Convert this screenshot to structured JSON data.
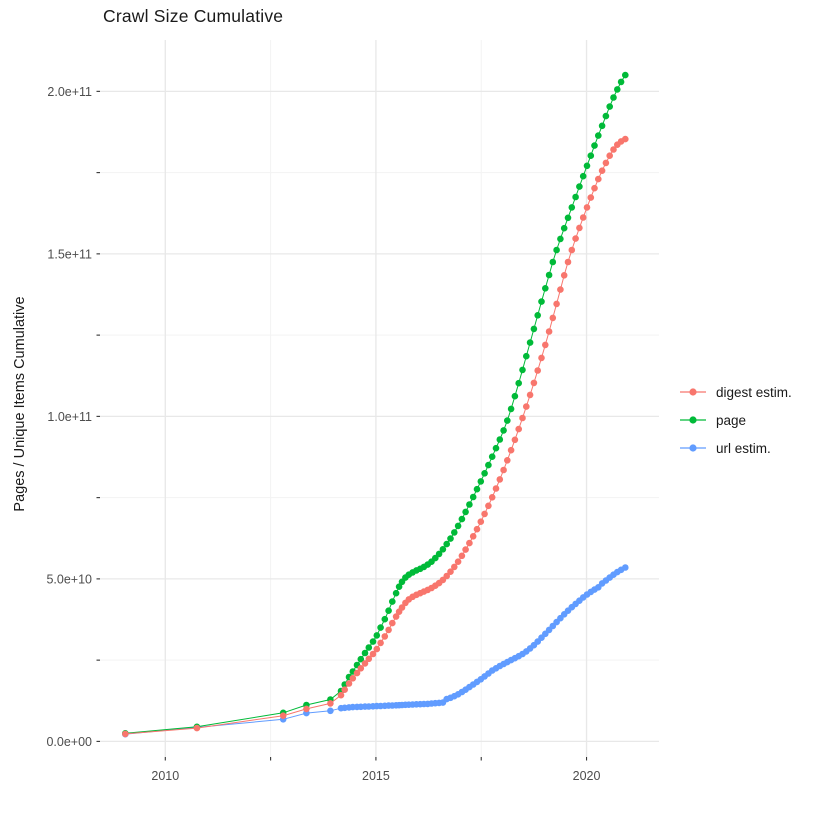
{
  "chart_data": {
    "type": "line",
    "marker": "point",
    "title": "Crawl Size Cumulative",
    "xlabel": "",
    "ylabel": "Pages / Unique Items Cumulative",
    "legend_position": "right",
    "grid": true,
    "y_values_unit": "billions (1e9)",
    "x_axis": {
      "range": [
        2008.45,
        2021.72
      ],
      "major_breaks": [
        2010,
        2015,
        2020
      ],
      "minor_breaks": [
        2012.5,
        2017.5
      ],
      "tick_marks": [
        2010,
        2012.5,
        2015,
        2017.5,
        2020
      ],
      "labels": [
        {
          "value": 2010,
          "text": "2010"
        },
        {
          "value": 2015,
          "text": "2015"
        },
        {
          "value": 2020,
          "text": "2020"
        }
      ]
    },
    "y_axis": {
      "range": [
        -4.8,
        215.8
      ],
      "major_breaks": [
        0,
        50,
        100,
        150,
        200
      ],
      "minor_breaks": [
        25,
        75,
        125,
        175
      ],
      "tick_marks": [
        0,
        25,
        50,
        75,
        100,
        125,
        150,
        175,
        200
      ],
      "labels": [
        {
          "value": 0,
          "text": "0.0e+00"
        },
        {
          "value": 50,
          "text": "5.0e+10"
        },
        {
          "value": 100,
          "text": "1.0e+11"
        },
        {
          "value": 150,
          "text": "1.5e+11"
        },
        {
          "value": 200,
          "text": "2.0e+11"
        }
      ]
    },
    "series": [
      {
        "name": "url estim.",
        "color": "#619CFF",
        "points": [
          [
            2009.05,
            2.2
          ],
          [
            2010.75,
            4.3
          ],
          [
            2012.8,
            6.8
          ],
          [
            2013.35,
            8.7
          ],
          [
            2013.92,
            9.4
          ],
          [
            2014.17,
            10.2
          ],
          [
            2014.26,
            10.35
          ],
          [
            2014.36,
            10.45
          ],
          [
            2014.45,
            10.55
          ],
          [
            2014.55,
            10.6
          ],
          [
            2014.64,
            10.65
          ],
          [
            2014.74,
            10.7
          ],
          [
            2014.83,
            10.75
          ],
          [
            2014.93,
            10.8
          ],
          [
            2015.02,
            10.85
          ],
          [
            2015.11,
            10.9
          ],
          [
            2015.21,
            10.95
          ],
          [
            2015.3,
            11.0
          ],
          [
            2015.39,
            11.05
          ],
          [
            2015.48,
            11.1
          ],
          [
            2015.55,
            11.15
          ],
          [
            2015.62,
            11.2
          ],
          [
            2015.7,
            11.25
          ],
          [
            2015.78,
            11.3
          ],
          [
            2015.87,
            11.35
          ],
          [
            2015.96,
            11.4
          ],
          [
            2016.05,
            11.45
          ],
          [
            2016.14,
            11.5
          ],
          [
            2016.23,
            11.55
          ],
          [
            2016.32,
            11.65
          ],
          [
            2016.41,
            11.75
          ],
          [
            2016.5,
            11.85
          ],
          [
            2016.59,
            11.95
          ],
          [
            2016.68,
            13.0
          ],
          [
            2016.77,
            13.4
          ],
          [
            2016.86,
            13.9
          ],
          [
            2016.95,
            14.5
          ],
          [
            2017.04,
            15.2
          ],
          [
            2017.13,
            15.9
          ],
          [
            2017.22,
            16.7
          ],
          [
            2017.31,
            17.5
          ],
          [
            2017.4,
            18.3
          ],
          [
            2017.49,
            19.1
          ],
          [
            2017.58,
            20.0
          ],
          [
            2017.67,
            20.9
          ],
          [
            2017.76,
            21.8
          ],
          [
            2017.85,
            22.5
          ],
          [
            2017.94,
            23.2
          ],
          [
            2018.03,
            23.8
          ],
          [
            2018.12,
            24.4
          ],
          [
            2018.21,
            25.0
          ],
          [
            2018.3,
            25.6
          ],
          [
            2018.39,
            26.2
          ],
          [
            2018.48,
            26.9
          ],
          [
            2018.57,
            27.7
          ],
          [
            2018.66,
            28.6
          ],
          [
            2018.75,
            29.6
          ],
          [
            2018.84,
            30.7
          ],
          [
            2018.93,
            31.9
          ],
          [
            2019.02,
            33.1
          ],
          [
            2019.11,
            34.3
          ],
          [
            2019.2,
            35.5
          ],
          [
            2019.29,
            36.7
          ],
          [
            2019.38,
            37.9
          ],
          [
            2019.47,
            39.1
          ],
          [
            2019.56,
            40.2
          ],
          [
            2019.65,
            41.3
          ],
          [
            2019.74,
            42.3
          ],
          [
            2019.83,
            43.3
          ],
          [
            2019.92,
            44.3
          ],
          [
            2020.01,
            45.2
          ],
          [
            2020.1,
            46.0
          ],
          [
            2020.19,
            46.7
          ],
          [
            2020.28,
            47.4
          ],
          [
            2020.37,
            48.6
          ],
          [
            2020.46,
            49.5
          ],
          [
            2020.55,
            50.4
          ],
          [
            2020.64,
            51.3
          ],
          [
            2020.73,
            52.1
          ],
          [
            2020.82,
            52.8
          ],
          [
            2020.92,
            53.5
          ]
        ]
      },
      {
        "name": "page",
        "color": "#00BA38",
        "points": [
          [
            2009.05,
            2.5
          ],
          [
            2010.75,
            4.5
          ],
          [
            2012.8,
            8.8
          ],
          [
            2013.35,
            11.2
          ],
          [
            2013.92,
            12.9
          ],
          [
            2014.17,
            15.5
          ],
          [
            2014.26,
            17.5
          ],
          [
            2014.36,
            19.8
          ],
          [
            2014.45,
            21.5
          ],
          [
            2014.55,
            23.5
          ],
          [
            2014.64,
            25.3
          ],
          [
            2014.74,
            27.2
          ],
          [
            2014.83,
            28.9
          ],
          [
            2014.93,
            30.7
          ],
          [
            2015.02,
            32.6
          ],
          [
            2015.11,
            35.0
          ],
          [
            2015.21,
            37.6
          ],
          [
            2015.3,
            40.2
          ],
          [
            2015.39,
            43.0
          ],
          [
            2015.48,
            45.6
          ],
          [
            2015.55,
            47.6
          ],
          [
            2015.62,
            49.1
          ],
          [
            2015.7,
            50.4
          ],
          [
            2015.78,
            51.3
          ],
          [
            2015.87,
            52.0
          ],
          [
            2015.96,
            52.6
          ],
          [
            2016.05,
            53.1
          ],
          [
            2016.14,
            53.7
          ],
          [
            2016.23,
            54.4
          ],
          [
            2016.32,
            55.3
          ],
          [
            2016.41,
            56.4
          ],
          [
            2016.5,
            57.7
          ],
          [
            2016.59,
            59.1
          ],
          [
            2016.68,
            60.7
          ],
          [
            2016.77,
            62.4
          ],
          [
            2016.86,
            64.3
          ],
          [
            2016.95,
            66.3
          ],
          [
            2017.04,
            68.4
          ],
          [
            2017.13,
            70.6
          ],
          [
            2017.22,
            72.9
          ],
          [
            2017.31,
            75.2
          ],
          [
            2017.4,
            77.6
          ],
          [
            2017.49,
            80.0
          ],
          [
            2017.58,
            82.5
          ],
          [
            2017.67,
            85.0
          ],
          [
            2017.76,
            87.6
          ],
          [
            2017.85,
            90.2
          ],
          [
            2017.94,
            92.9
          ],
          [
            2018.03,
            95.7
          ],
          [
            2018.12,
            98.7
          ],
          [
            2018.21,
            102.3
          ],
          [
            2018.3,
            106.2
          ],
          [
            2018.39,
            110.2
          ],
          [
            2018.48,
            114.3
          ],
          [
            2018.57,
            118.5
          ],
          [
            2018.66,
            122.7
          ],
          [
            2018.75,
            126.9
          ],
          [
            2018.84,
            131.1
          ],
          [
            2018.93,
            135.3
          ],
          [
            2019.02,
            139.4
          ],
          [
            2019.11,
            143.5
          ],
          [
            2019.2,
            147.5
          ],
          [
            2019.29,
            151.2
          ],
          [
            2019.38,
            154.6
          ],
          [
            2019.47,
            157.9
          ],
          [
            2019.56,
            161.1
          ],
          [
            2019.65,
            164.3
          ],
          [
            2019.74,
            167.5
          ],
          [
            2019.83,
            170.7
          ],
          [
            2019.92,
            173.9
          ],
          [
            2020.01,
            177.1
          ],
          [
            2020.1,
            180.2
          ],
          [
            2020.19,
            183.3
          ],
          [
            2020.28,
            186.4
          ],
          [
            2020.37,
            189.4
          ],
          [
            2020.46,
            192.4
          ],
          [
            2020.55,
            195.3
          ],
          [
            2020.64,
            198.1
          ],
          [
            2020.73,
            200.6
          ],
          [
            2020.82,
            202.9
          ],
          [
            2020.92,
            205.0
          ]
        ]
      },
      {
        "name": "digest estim.",
        "color": "#F8766D",
        "points": [
          [
            2009.05,
            2.3
          ],
          [
            2010.75,
            4.1
          ],
          [
            2012.8,
            7.9
          ],
          [
            2013.35,
            10.0
          ],
          [
            2013.92,
            11.7
          ],
          [
            2014.17,
            14.2
          ],
          [
            2014.26,
            15.9
          ],
          [
            2014.36,
            17.8
          ],
          [
            2014.45,
            19.4
          ],
          [
            2014.55,
            21.0
          ],
          [
            2014.64,
            22.5
          ],
          [
            2014.74,
            24.0
          ],
          [
            2014.83,
            25.4
          ],
          [
            2014.93,
            26.9
          ],
          [
            2015.02,
            28.4
          ],
          [
            2015.11,
            30.3
          ],
          [
            2015.21,
            32.3
          ],
          [
            2015.3,
            34.3
          ],
          [
            2015.39,
            36.4
          ],
          [
            2015.48,
            38.4
          ],
          [
            2015.55,
            39.9
          ],
          [
            2015.62,
            41.2
          ],
          [
            2015.7,
            42.6
          ],
          [
            2015.78,
            43.7
          ],
          [
            2015.87,
            44.5
          ],
          [
            2015.96,
            45.1
          ],
          [
            2016.05,
            45.6
          ],
          [
            2016.14,
            46.1
          ],
          [
            2016.23,
            46.6
          ],
          [
            2016.32,
            47.2
          ],
          [
            2016.41,
            47.9
          ],
          [
            2016.5,
            48.7
          ],
          [
            2016.59,
            49.7
          ],
          [
            2016.68,
            50.9
          ],
          [
            2016.77,
            52.2
          ],
          [
            2016.86,
            53.7
          ],
          [
            2016.95,
            55.3
          ],
          [
            2017.04,
            57.1
          ],
          [
            2017.13,
            59.0
          ],
          [
            2017.22,
            61.0
          ],
          [
            2017.31,
            63.1
          ],
          [
            2017.4,
            65.3
          ],
          [
            2017.49,
            67.6
          ],
          [
            2017.58,
            70.0
          ],
          [
            2017.67,
            72.5
          ],
          [
            2017.76,
            75.1
          ],
          [
            2017.85,
            77.8
          ],
          [
            2017.94,
            80.6
          ],
          [
            2018.03,
            83.5
          ],
          [
            2018.12,
            86.5
          ],
          [
            2018.21,
            89.6
          ],
          [
            2018.3,
            92.8
          ],
          [
            2018.39,
            96.1
          ],
          [
            2018.48,
            99.5
          ],
          [
            2018.57,
            103.0
          ],
          [
            2018.66,
            106.6
          ],
          [
            2018.75,
            110.3
          ],
          [
            2018.84,
            114.1
          ],
          [
            2018.93,
            118.0
          ],
          [
            2019.02,
            122.0
          ],
          [
            2019.11,
            126.1
          ],
          [
            2019.2,
            130.3
          ],
          [
            2019.29,
            134.6
          ],
          [
            2019.38,
            139.0
          ],
          [
            2019.47,
            143.4
          ],
          [
            2019.56,
            147.5
          ],
          [
            2019.65,
            151.2
          ],
          [
            2019.74,
            154.7
          ],
          [
            2019.83,
            158.0
          ],
          [
            2019.92,
            161.2
          ],
          [
            2020.01,
            164.3
          ],
          [
            2020.1,
            167.3
          ],
          [
            2020.19,
            170.2
          ],
          [
            2020.28,
            173.0
          ],
          [
            2020.37,
            175.6
          ],
          [
            2020.46,
            178.0
          ],
          [
            2020.55,
            180.2
          ],
          [
            2020.64,
            182.1
          ],
          [
            2020.73,
            183.6
          ],
          [
            2020.82,
            184.6
          ],
          [
            2020.92,
            185.3
          ]
        ]
      }
    ],
    "legend_order": [
      "digest estim.",
      "page",
      "url estim."
    ],
    "colors": {
      "digest_estim": "#F8766D",
      "page": "#00BA38",
      "url_estim": "#619CFF",
      "grid_major": "#e8e8e8",
      "grid_minor": "#f3f3f3",
      "tick_mark": "#333333",
      "axis_text": "#4d4d4d",
      "title_text": "#1a1a1a"
    }
  }
}
